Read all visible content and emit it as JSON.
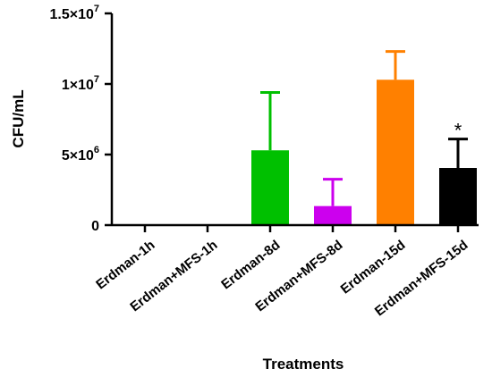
{
  "chart_data": {
    "type": "bar",
    "title": "",
    "xlabel": "Treatments",
    "ylabel": "CFU/mL",
    "ylim": [
      0,
      15000000
    ],
    "yticks": [
      {
        "value": 0,
        "base": "0",
        "exp": ""
      },
      {
        "value": 5000000,
        "base": "5×10",
        "exp": "6"
      },
      {
        "value": 10000000,
        "base": "1×10",
        "exp": "7"
      },
      {
        "value": 15000000,
        "base": "1.5×10",
        "exp": "7"
      }
    ],
    "categories": [
      "Erdman-1h",
      "Erdman+MFS-1h",
      "Erdman-8d",
      "Erdman+MFS-8d",
      "Erdman-15d",
      "Erdman+MFS-15d"
    ],
    "values": [
      0,
      0,
      5300000,
      1350000,
      10300000,
      4050000
    ],
    "errors": [
      0,
      0,
      4100000,
      1900000,
      2000000,
      2050000
    ],
    "colors": [
      "#00c000",
      "#00c000",
      "#00c000",
      "#cc00ee",
      "#ff8000",
      "#000000"
    ],
    "annotations": [
      {
        "category": "Erdman+MFS-15d",
        "text": "*"
      }
    ],
    "grid": false
  }
}
